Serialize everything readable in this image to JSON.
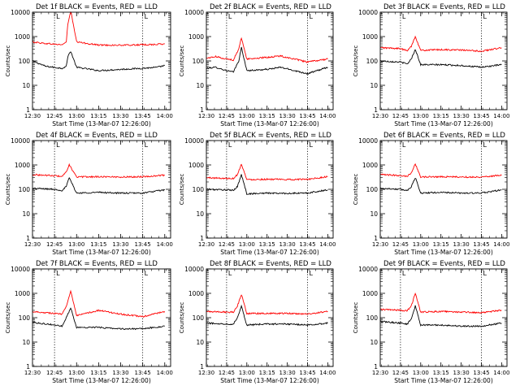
{
  "colors": {
    "events": "#000000",
    "lld": "#ff0000",
    "axes": "#000000",
    "background": "#ffffff"
  },
  "chart_data": [
    {
      "type": "line",
      "title": "Det 1f BLACK = Events, RED = LLD",
      "xlabel": "Start Time (13-Mar-07 12:26:00)",
      "ylabel": "Counts/sec",
      "yscale": "log",
      "ylim": [
        1,
        10000
      ],
      "x_ticks": [
        "12:30",
        "12:45",
        "13:00",
        "13:15",
        "13:30",
        "13:45",
        "14:00"
      ],
      "y_ticks": [
        "1",
        "10",
        "100",
        "1000",
        "10000"
      ],
      "markers": [
        "12:45",
        "13:45"
      ],
      "marker_label": "L",
      "series": [
        {
          "name": "Events",
          "color": "#000000",
          "x": [
            "12:30",
            "12:39",
            "12:50",
            "12:53",
            "12:54",
            "12:56",
            "13:00",
            "13:15",
            "13:30",
            "13:45",
            "13:55",
            "14:00"
          ],
          "values": [
            100,
            60,
            50,
            60,
            150,
            250,
            55,
            40,
            45,
            50,
            55,
            65
          ]
        },
        {
          "name": "LLD",
          "color": "#ff0000",
          "x": [
            "12:30",
            "12:39",
            "12:50",
            "12:53",
            "12:54",
            "12:56",
            "13:00",
            "13:15",
            "13:30",
            "13:45",
            "13:55",
            "14:00"
          ],
          "values": [
            600,
            520,
            460,
            600,
            3000,
            12000,
            600,
            450,
            440,
            460,
            480,
            500
          ]
        }
      ]
    },
    {
      "type": "line",
      "title": "Det 2f BLACK = Events, RED = LLD",
      "xlabel": "Start Time (13-Mar-07 12:26:00)",
      "ylabel": "Counts/sec",
      "yscale": "log",
      "ylim": [
        1,
        10000
      ],
      "x_ticks": [
        "12:30",
        "12:45",
        "13:00",
        "13:15",
        "13:30",
        "13:45",
        "14:00"
      ],
      "y_ticks": [
        "1",
        "10",
        "100",
        "1000",
        "10000"
      ],
      "markers": [
        "12:45",
        "13:45"
      ],
      "marker_label": "L",
      "series": [
        {
          "name": "Events",
          "color": "#000000",
          "x": [
            "12:30",
            "12:37",
            "12:45",
            "12:50",
            "12:54",
            "12:56",
            "13:00",
            "13:15",
            "13:25",
            "13:45",
            "14:00"
          ],
          "values": [
            50,
            55,
            40,
            35,
            100,
            350,
            40,
            45,
            55,
            30,
            55
          ]
        },
        {
          "name": "LLD",
          "color": "#ff0000",
          "x": [
            "12:30",
            "12:37",
            "12:45",
            "12:50",
            "12:54",
            "12:56",
            "13:00",
            "13:15",
            "13:25",
            "13:45",
            "14:00"
          ],
          "values": [
            130,
            150,
            120,
            110,
            300,
            900,
            120,
            140,
            160,
            90,
            120
          ]
        }
      ]
    },
    {
      "type": "line",
      "title": "Det 3f BLACK = Events, RED = LLD",
      "xlabel": "Start Time (13-Mar-07 12:26:00)",
      "ylabel": "Counts/sec",
      "yscale": "log",
      "ylim": [
        1,
        10000
      ],
      "x_ticks": [
        "12:30",
        "12:45",
        "13:00",
        "13:15",
        "13:30",
        "13:45",
        "14:00"
      ],
      "y_ticks": [
        "1",
        "10",
        "100",
        "1000",
        "10000"
      ],
      "markers": [
        "12:45",
        "13:45"
      ],
      "marker_label": "L",
      "series": [
        {
          "name": "Events",
          "color": "#000000",
          "x": [
            "12:30",
            "12:45",
            "12:50",
            "12:53",
            "12:56",
            "13:00",
            "13:15",
            "13:30",
            "13:45",
            "14:00"
          ],
          "values": [
            100,
            90,
            75,
            120,
            300,
            70,
            70,
            65,
            55,
            70
          ]
        },
        {
          "name": "LLD",
          "color": "#ff0000",
          "x": [
            "12:30",
            "12:45",
            "12:50",
            "12:53",
            "12:56",
            "13:00",
            "13:15",
            "13:30",
            "13:45",
            "14:00"
          ],
          "values": [
            350,
            320,
            260,
            400,
            1000,
            270,
            290,
            280,
            250,
            350
          ]
        }
      ]
    },
    {
      "type": "line",
      "title": "Det 4f BLACK = Events, RED = LLD",
      "xlabel": "Start Time (13-Mar-07 12:26:00)",
      "ylabel": "Counts/sec",
      "yscale": "log",
      "ylim": [
        1,
        10000
      ],
      "x_ticks": [
        "12:30",
        "12:45",
        "13:00",
        "13:15",
        "13:30",
        "13:45",
        "14:00"
      ],
      "y_ticks": [
        "1",
        "10",
        "100",
        "1000",
        "10000"
      ],
      "markers": [
        "12:45",
        "13:45"
      ],
      "marker_label": "L",
      "series": [
        {
          "name": "Events",
          "color": "#000000",
          "x": [
            "12:30",
            "12:45",
            "12:50",
            "12:53",
            "12:55",
            "13:00",
            "13:15",
            "13:30",
            "13:45",
            "14:00"
          ],
          "values": [
            110,
            100,
            90,
            130,
            300,
            70,
            75,
            70,
            70,
            95
          ]
        },
        {
          "name": "LLD",
          "color": "#ff0000",
          "x": [
            "12:30",
            "12:45",
            "12:50",
            "12:53",
            "12:55",
            "13:00",
            "13:15",
            "13:30",
            "13:45",
            "14:00"
          ],
          "values": [
            400,
            360,
            340,
            500,
            1000,
            320,
            330,
            320,
            330,
            380
          ]
        }
      ]
    },
    {
      "type": "line",
      "title": "Det 5f BLACK = Events, RED = LLD",
      "xlabel": "Start Time (13-Mar-07 12:26:00)",
      "ylabel": "Counts/sec",
      "yscale": "log",
      "ylim": [
        1,
        10000
      ],
      "x_ticks": [
        "12:30",
        "12:45",
        "13:00",
        "13:15",
        "13:30",
        "13:45",
        "14:00"
      ],
      "y_ticks": [
        "1",
        "10",
        "100",
        "1000",
        "10000"
      ],
      "markers": [
        "12:45",
        "13:45"
      ],
      "marker_label": "L",
      "series": [
        {
          "name": "Events",
          "color": "#000000",
          "x": [
            "12:30",
            "12:45",
            "12:50",
            "12:53",
            "12:56",
            "13:00",
            "13:15",
            "13:30",
            "13:45",
            "14:00"
          ],
          "values": [
            100,
            95,
            90,
            130,
            400,
            65,
            70,
            68,
            70,
            95
          ]
        },
        {
          "name": "LLD",
          "color": "#ff0000",
          "x": [
            "12:30",
            "12:45",
            "12:50",
            "12:53",
            "12:56",
            "13:00",
            "13:15",
            "13:30",
            "13:45",
            "14:00"
          ],
          "values": [
            300,
            280,
            280,
            400,
            1100,
            250,
            260,
            250,
            260,
            330
          ]
        }
      ]
    },
    {
      "type": "line",
      "title": "Det 6f BLACK = Events, RED = LLD",
      "xlabel": "Start Time (13-Mar-07 12:26:00)",
      "ylabel": "Counts/sec",
      "yscale": "log",
      "ylim": [
        1,
        10000
      ],
      "x_ticks": [
        "12:30",
        "12:45",
        "13:00",
        "13:15",
        "13:30",
        "13:45",
        "14:00"
      ],
      "y_ticks": [
        "1",
        "10",
        "100",
        "1000",
        "10000"
      ],
      "markers": [
        "12:45",
        "13:45"
      ],
      "marker_label": "L",
      "series": [
        {
          "name": "Events",
          "color": "#000000",
          "x": [
            "12:30",
            "12:45",
            "12:50",
            "12:53",
            "12:56",
            "13:00",
            "13:15",
            "13:30",
            "13:45",
            "14:00"
          ],
          "values": [
            110,
            100,
            90,
            130,
            300,
            70,
            75,
            70,
            70,
            95
          ]
        },
        {
          "name": "LLD",
          "color": "#ff0000",
          "x": [
            "12:30",
            "12:45",
            "12:50",
            "12:53",
            "12:56",
            "13:00",
            "13:15",
            "13:30",
            "13:45",
            "14:00"
          ],
          "values": [
            400,
            370,
            340,
            480,
            1100,
            320,
            330,
            320,
            320,
            380
          ]
        }
      ]
    },
    {
      "type": "line",
      "title": "Det 7f BLACK = Events, RED = LLD",
      "xlabel": "Start Time (13-Mar-07 12:26:00)",
      "ylabel": "Counts/sec",
      "yscale": "log",
      "ylim": [
        1,
        10000
      ],
      "x_ticks": [
        "12:30",
        "12:45",
        "13:00",
        "13:15",
        "13:30",
        "13:45",
        "14:00"
      ],
      "y_ticks": [
        "1",
        "10",
        "100",
        "1000",
        "10000"
      ],
      "markers": [
        "12:45",
        "13:45"
      ],
      "marker_label": "L",
      "series": [
        {
          "name": "Events",
          "color": "#000000",
          "x": [
            "12:30",
            "12:45",
            "12:50",
            "12:53",
            "12:56",
            "13:00",
            "13:15",
            "13:30",
            "13:45",
            "14:00"
          ],
          "values": [
            65,
            50,
            45,
            100,
            250,
            40,
            40,
            35,
            35,
            45
          ]
        },
        {
          "name": "LLD",
          "color": "#ff0000",
          "x": [
            "12:30",
            "12:45",
            "12:50",
            "12:53",
            "12:56",
            "13:00",
            "13:15",
            "13:30",
            "13:45",
            "14:00"
          ],
          "values": [
            180,
            150,
            140,
            300,
            1200,
            120,
            200,
            140,
            110,
            180
          ]
        }
      ]
    },
    {
      "type": "line",
      "title": "Det 8f BLACK = Events, RED = LLD",
      "xlabel": "Start Time (13-Mar-07 12:26:00)",
      "ylabel": "Counts/sec",
      "yscale": "log",
      "ylim": [
        1,
        10000
      ],
      "x_ticks": [
        "12:30",
        "12:45",
        "13:00",
        "13:15",
        "13:30",
        "13:45",
        "14:00"
      ],
      "y_ticks": [
        "1",
        "10",
        "100",
        "1000",
        "10000"
      ],
      "markers": [
        "12:45",
        "13:45"
      ],
      "marker_label": "L",
      "series": [
        {
          "name": "Events",
          "color": "#000000",
          "x": [
            "12:30",
            "12:45",
            "12:50",
            "12:53",
            "12:56",
            "13:00",
            "13:15",
            "13:30",
            "13:45",
            "14:00"
          ],
          "values": [
            60,
            55,
            55,
            100,
            300,
            50,
            55,
            55,
            50,
            60
          ]
        },
        {
          "name": "LLD",
          "color": "#ff0000",
          "x": [
            "12:30",
            "12:45",
            "12:50",
            "12:53",
            "12:56",
            "13:00",
            "13:15",
            "13:30",
            "13:45",
            "14:00"
          ],
          "values": [
            180,
            170,
            170,
            300,
            900,
            150,
            150,
            150,
            140,
            180
          ]
        }
      ]
    },
    {
      "type": "line",
      "title": "Det 9f BLACK = Events, RED = LLD",
      "xlabel": "Start Time (13-Mar-07 12:26:00)",
      "ylabel": "Counts/sec",
      "yscale": "log",
      "ylim": [
        1,
        10000
      ],
      "x_ticks": [
        "12:30",
        "12:45",
        "13:00",
        "13:15",
        "13:30",
        "13:45",
        "14:00"
      ],
      "y_ticks": [
        "1",
        "10",
        "100",
        "1000",
        "10000"
      ],
      "markers": [
        "12:45",
        "13:45"
      ],
      "marker_label": "L",
      "series": [
        {
          "name": "Events",
          "color": "#000000",
          "x": [
            "12:30",
            "12:45",
            "12:50",
            "12:53",
            "12:56",
            "13:00",
            "13:15",
            "13:30",
            "13:45",
            "14:00"
          ],
          "values": [
            70,
            60,
            55,
            90,
            300,
            50,
            50,
            45,
            45,
            60
          ]
        },
        {
          "name": "LLD",
          "color": "#ff0000",
          "x": [
            "12:30",
            "12:45",
            "12:50",
            "12:53",
            "12:56",
            "13:00",
            "13:15",
            "13:30",
            "13:45",
            "14:00"
          ],
          "values": [
            220,
            200,
            190,
            300,
            1000,
            170,
            180,
            170,
            160,
            200
          ]
        }
      ]
    }
  ]
}
